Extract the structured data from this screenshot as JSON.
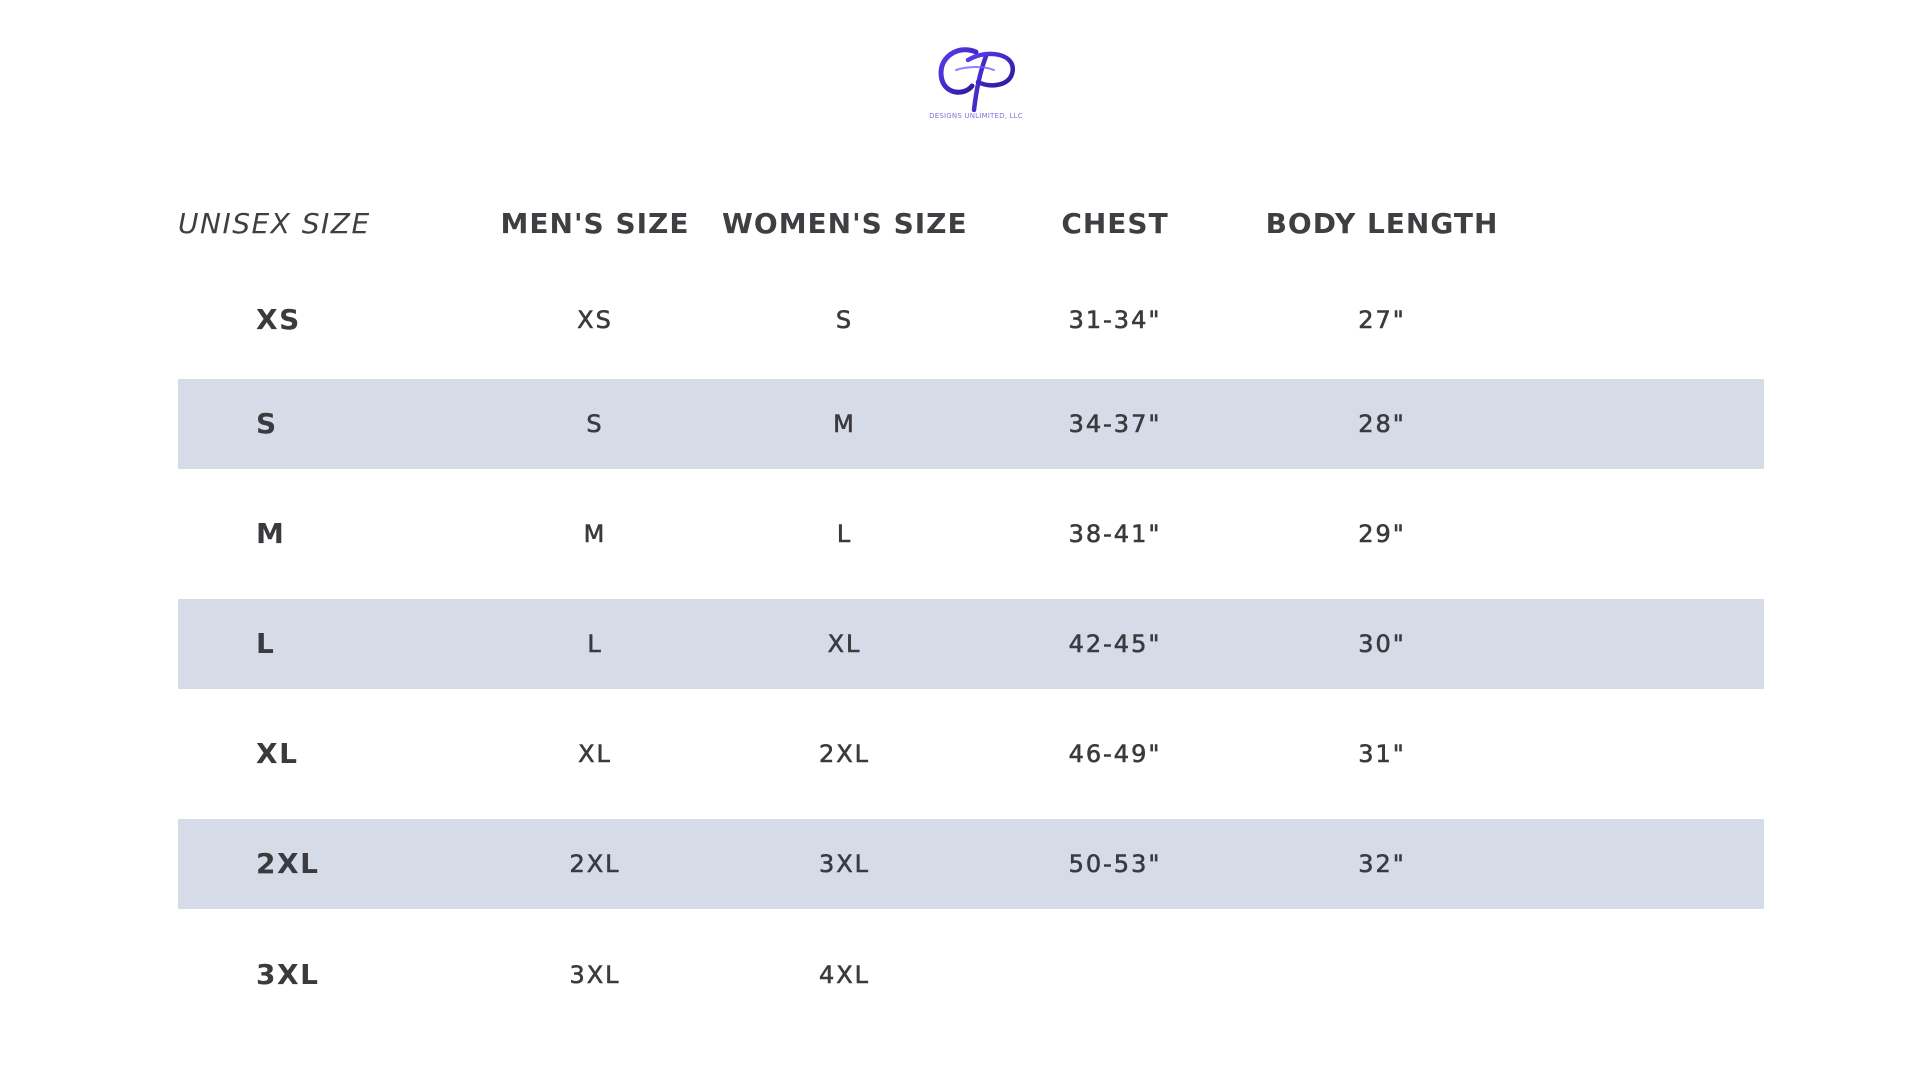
{
  "logo": {
    "caption": "DESIGNS UNLIMITED, LLC",
    "brand_color": "#4a2fd0"
  },
  "table": {
    "headers": {
      "unisex": "UNISEX SIZE",
      "mens": "MEN'S SIZE",
      "womens": "WOMEN'S SIZE",
      "chest": "CHEST",
      "body_length": "BODY LENGTH"
    },
    "shade_color": "#d5dce8",
    "rows": [
      {
        "unisex": "XS",
        "mens": "XS",
        "womens": "S",
        "chest": "31-34\"",
        "body_length": "27\""
      },
      {
        "unisex": "S",
        "mens": "S",
        "womens": "M",
        "chest": "34-37\"",
        "body_length": "28\""
      },
      {
        "unisex": "M",
        "mens": "M",
        "womens": "L",
        "chest": "38-41\"",
        "body_length": "29\""
      },
      {
        "unisex": "L",
        "mens": "L",
        "womens": "XL",
        "chest": "42-45\"",
        "body_length": "30\""
      },
      {
        "unisex": "XL",
        "mens": "XL",
        "womens": "2XL",
        "chest": "46-49\"",
        "body_length": "31\""
      },
      {
        "unisex": "2XL",
        "mens": "2XL",
        "womens": "3XL",
        "chest": "50-53\"",
        "body_length": "32\""
      },
      {
        "unisex": "3XL",
        "mens": "3XL",
        "womens": "4XL",
        "chest": "",
        "body_length": ""
      }
    ]
  }
}
